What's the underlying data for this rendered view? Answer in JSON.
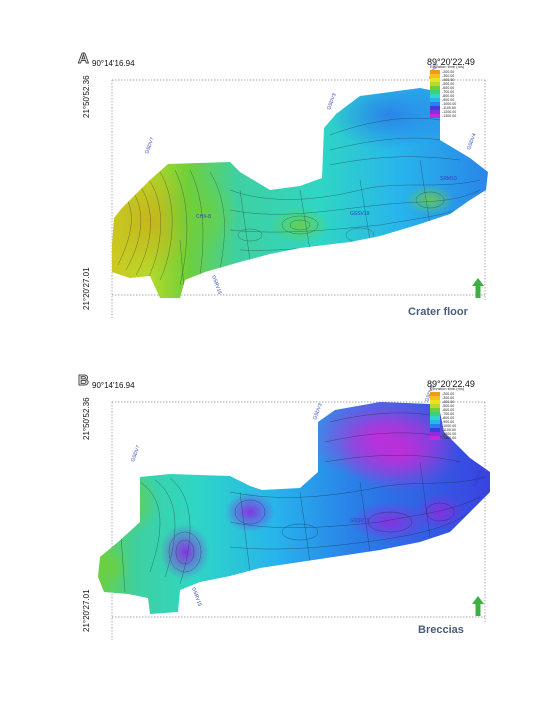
{
  "panels": [
    {
      "letter": "A",
      "lon_left": "90°14'16.94",
      "lon_right": "89°20'22.49",
      "lat_top": "21°50'52.36",
      "lat_bottom": "21°20'27.01",
      "caption": "Crater floor",
      "legend_title": "Elevation time (ms)",
      "legend": [
        {
          "label": "-200.00",
          "color": "#f29a1c"
        },
        {
          "label": "-300.00",
          "color": "#f6c11a"
        },
        {
          "label": "-400.00",
          "color": "#e9e31f"
        },
        {
          "label": "-500.00",
          "color": "#b7d92a"
        },
        {
          "label": "-600.00",
          "color": "#6fcf3a"
        },
        {
          "label": "-700.00",
          "color": "#3fd07a"
        },
        {
          "label": "-800.00",
          "color": "#2fd6c4"
        },
        {
          "label": "-900.00",
          "color": "#28b4ec"
        },
        {
          "label": "-1000.00",
          "color": "#2a7fe8"
        },
        {
          "label": "-1100.00",
          "color": "#3b3fe0"
        },
        {
          "label": "-1200.00",
          "color": "#8a2ee0"
        },
        {
          "label": "-1300.00",
          "color": "#c62ad8"
        }
      ]
    },
    {
      "letter": "B",
      "lon_left": "90°14'16.94",
      "lon_right": "89°20'22.49",
      "lat_top": "21°50'52.36",
      "lat_bottom": "21°20'27.01",
      "caption": "Breccias",
      "legend_title": "Elevation time (ms)",
      "legend": [
        {
          "label": "-200.00",
          "color": "#f29a1c"
        },
        {
          "label": "-300.00",
          "color": "#f6c11a"
        },
        {
          "label": "-400.00",
          "color": "#e9e31f"
        },
        {
          "label": "-500.00",
          "color": "#b7d92a"
        },
        {
          "label": "-600.00",
          "color": "#6fcf3a"
        },
        {
          "label": "-700.00",
          "color": "#3fd07a"
        },
        {
          "label": "-800.00",
          "color": "#2fd6c4"
        },
        {
          "label": "-900.00",
          "color": "#28b4ec"
        },
        {
          "label": "-1000.00",
          "color": "#2a7fe8"
        },
        {
          "label": "-1100.00",
          "color": "#3b3fe0"
        },
        {
          "label": "-1200.00",
          "color": "#8a2ee0"
        },
        {
          "label": "-1300.00",
          "color": "#c62ad8"
        }
      ]
    }
  ],
  "colors": {
    "frame_line": "#8a8a8a",
    "caption": "#4a5d7a",
    "north_arrow": "#3cb043"
  }
}
